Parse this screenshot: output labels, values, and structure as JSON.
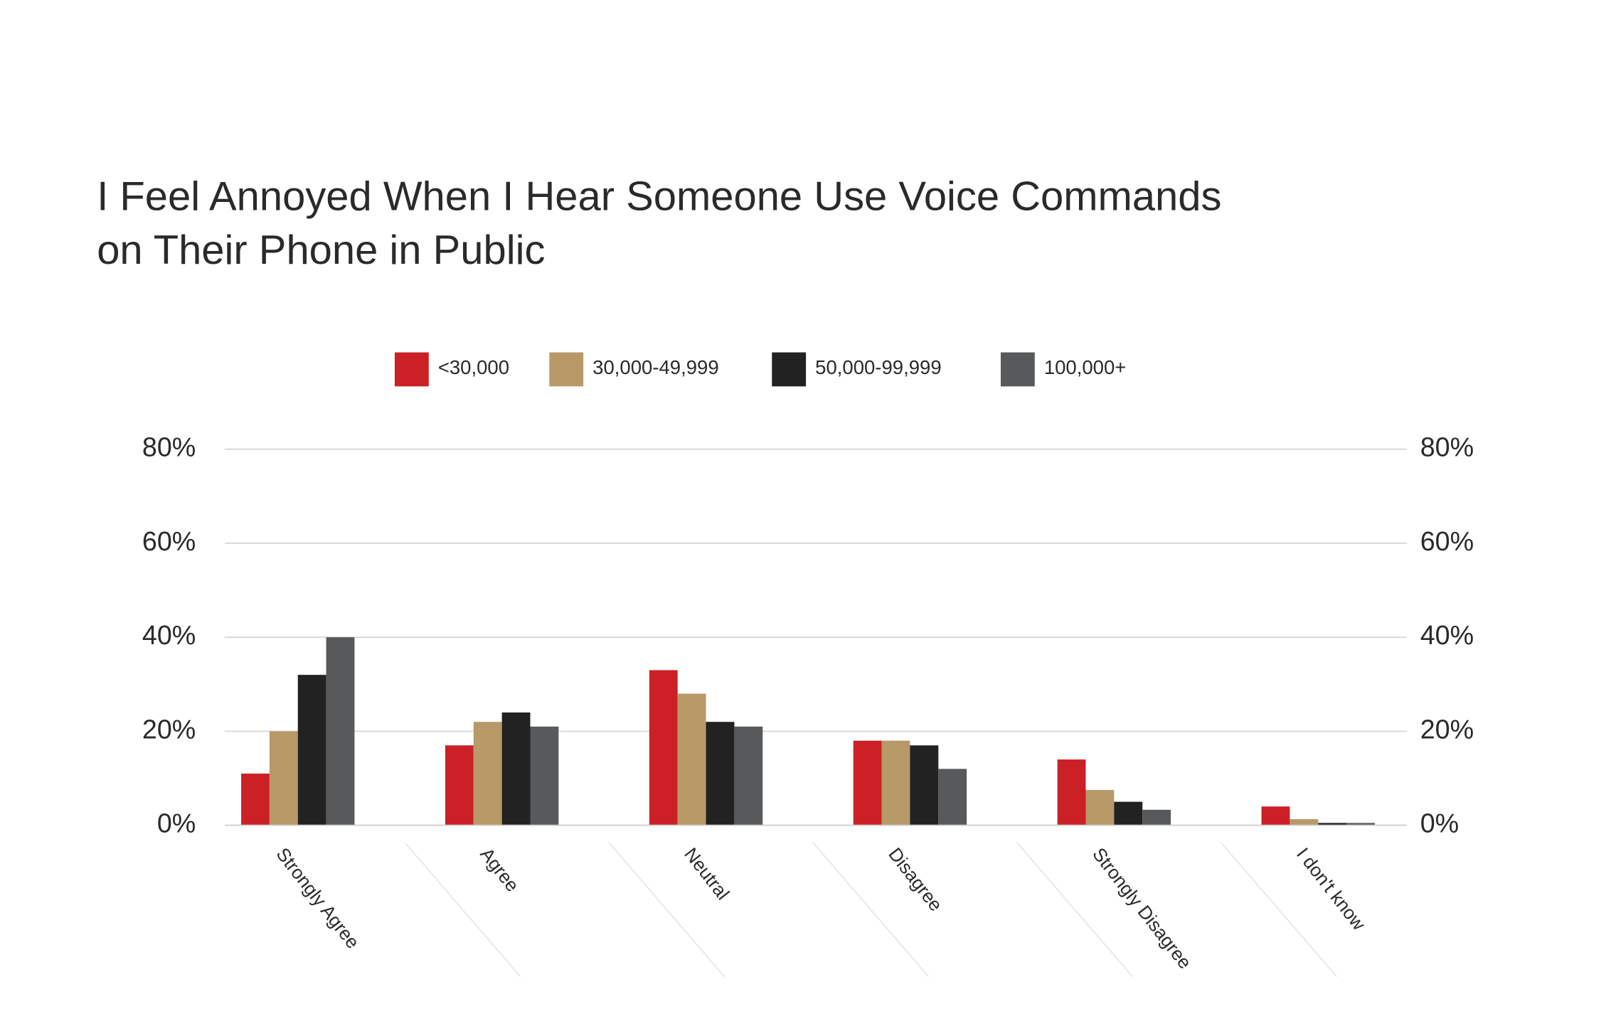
{
  "chart_data": {
    "type": "bar",
    "title": [
      "I Feel Annoyed When I Hear Someone Use Voice Commands",
      "on Their Phone in Public"
    ],
    "categories": [
      "Strongly Agree",
      "Agree",
      "Neutral",
      "Disagree",
      "Strongly Disagree",
      "I don't know"
    ],
    "series": [
      {
        "name": "<30,000",
        "color": "#cc2027",
        "values": [
          11,
          17,
          33,
          18,
          14,
          4
        ]
      },
      {
        "name": "30,000-49,999",
        "color": "#b89968",
        "values": [
          20,
          22,
          28,
          18,
          7.5,
          1.3
        ]
      },
      {
        "name": "50,000-99,999",
        "color": "#222222",
        "values": [
          32,
          24,
          22,
          17,
          5,
          0.5
        ]
      },
      {
        "name": "100,000+",
        "color": "#58595b",
        "values": [
          40,
          21,
          21,
          12,
          3.3,
          0.5
        ]
      }
    ],
    "ylim": [
      0,
      80
    ],
    "yticks": [
      {
        "value": 0,
        "label": "0%"
      },
      {
        "value": 20,
        "label": "20%"
      },
      {
        "value": 40,
        "label": "40%"
      },
      {
        "value": 60,
        "label": "60%"
      },
      {
        "value": 80,
        "label": "80%"
      }
    ],
    "y2lim": [
      0,
      80
    ],
    "y2ticks": [
      {
        "value": 0,
        "label": "0%"
      },
      {
        "value": 20,
        "label": "20%"
      },
      {
        "value": 40,
        "label": "40%"
      },
      {
        "value": 60,
        "label": "60%"
      },
      {
        "value": 80,
        "label": "80%"
      }
    ],
    "grid": true,
    "legend": "top"
  }
}
